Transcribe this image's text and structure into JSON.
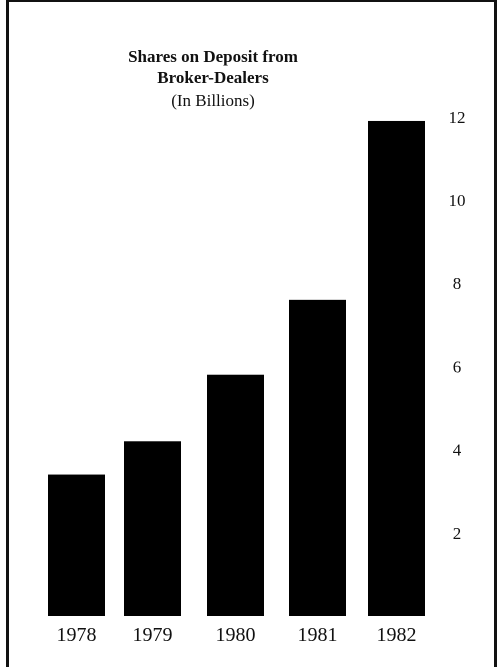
{
  "chart_data": {
    "type": "bar",
    "title": "Shares on Deposit from Broker-Dealers",
    "subtitle": "(In Billions)",
    "categories": [
      "1978",
      "1979",
      "1980",
      "1981",
      "1982"
    ],
    "values": [
      3.4,
      4.2,
      5.8,
      7.6,
      11.9
    ],
    "yticks": [
      2,
      4,
      6,
      8,
      10,
      12
    ],
    "ylim": [
      0,
      12
    ],
    "y_axis_side": "right",
    "grid": false,
    "bar_color": "#000000"
  }
}
